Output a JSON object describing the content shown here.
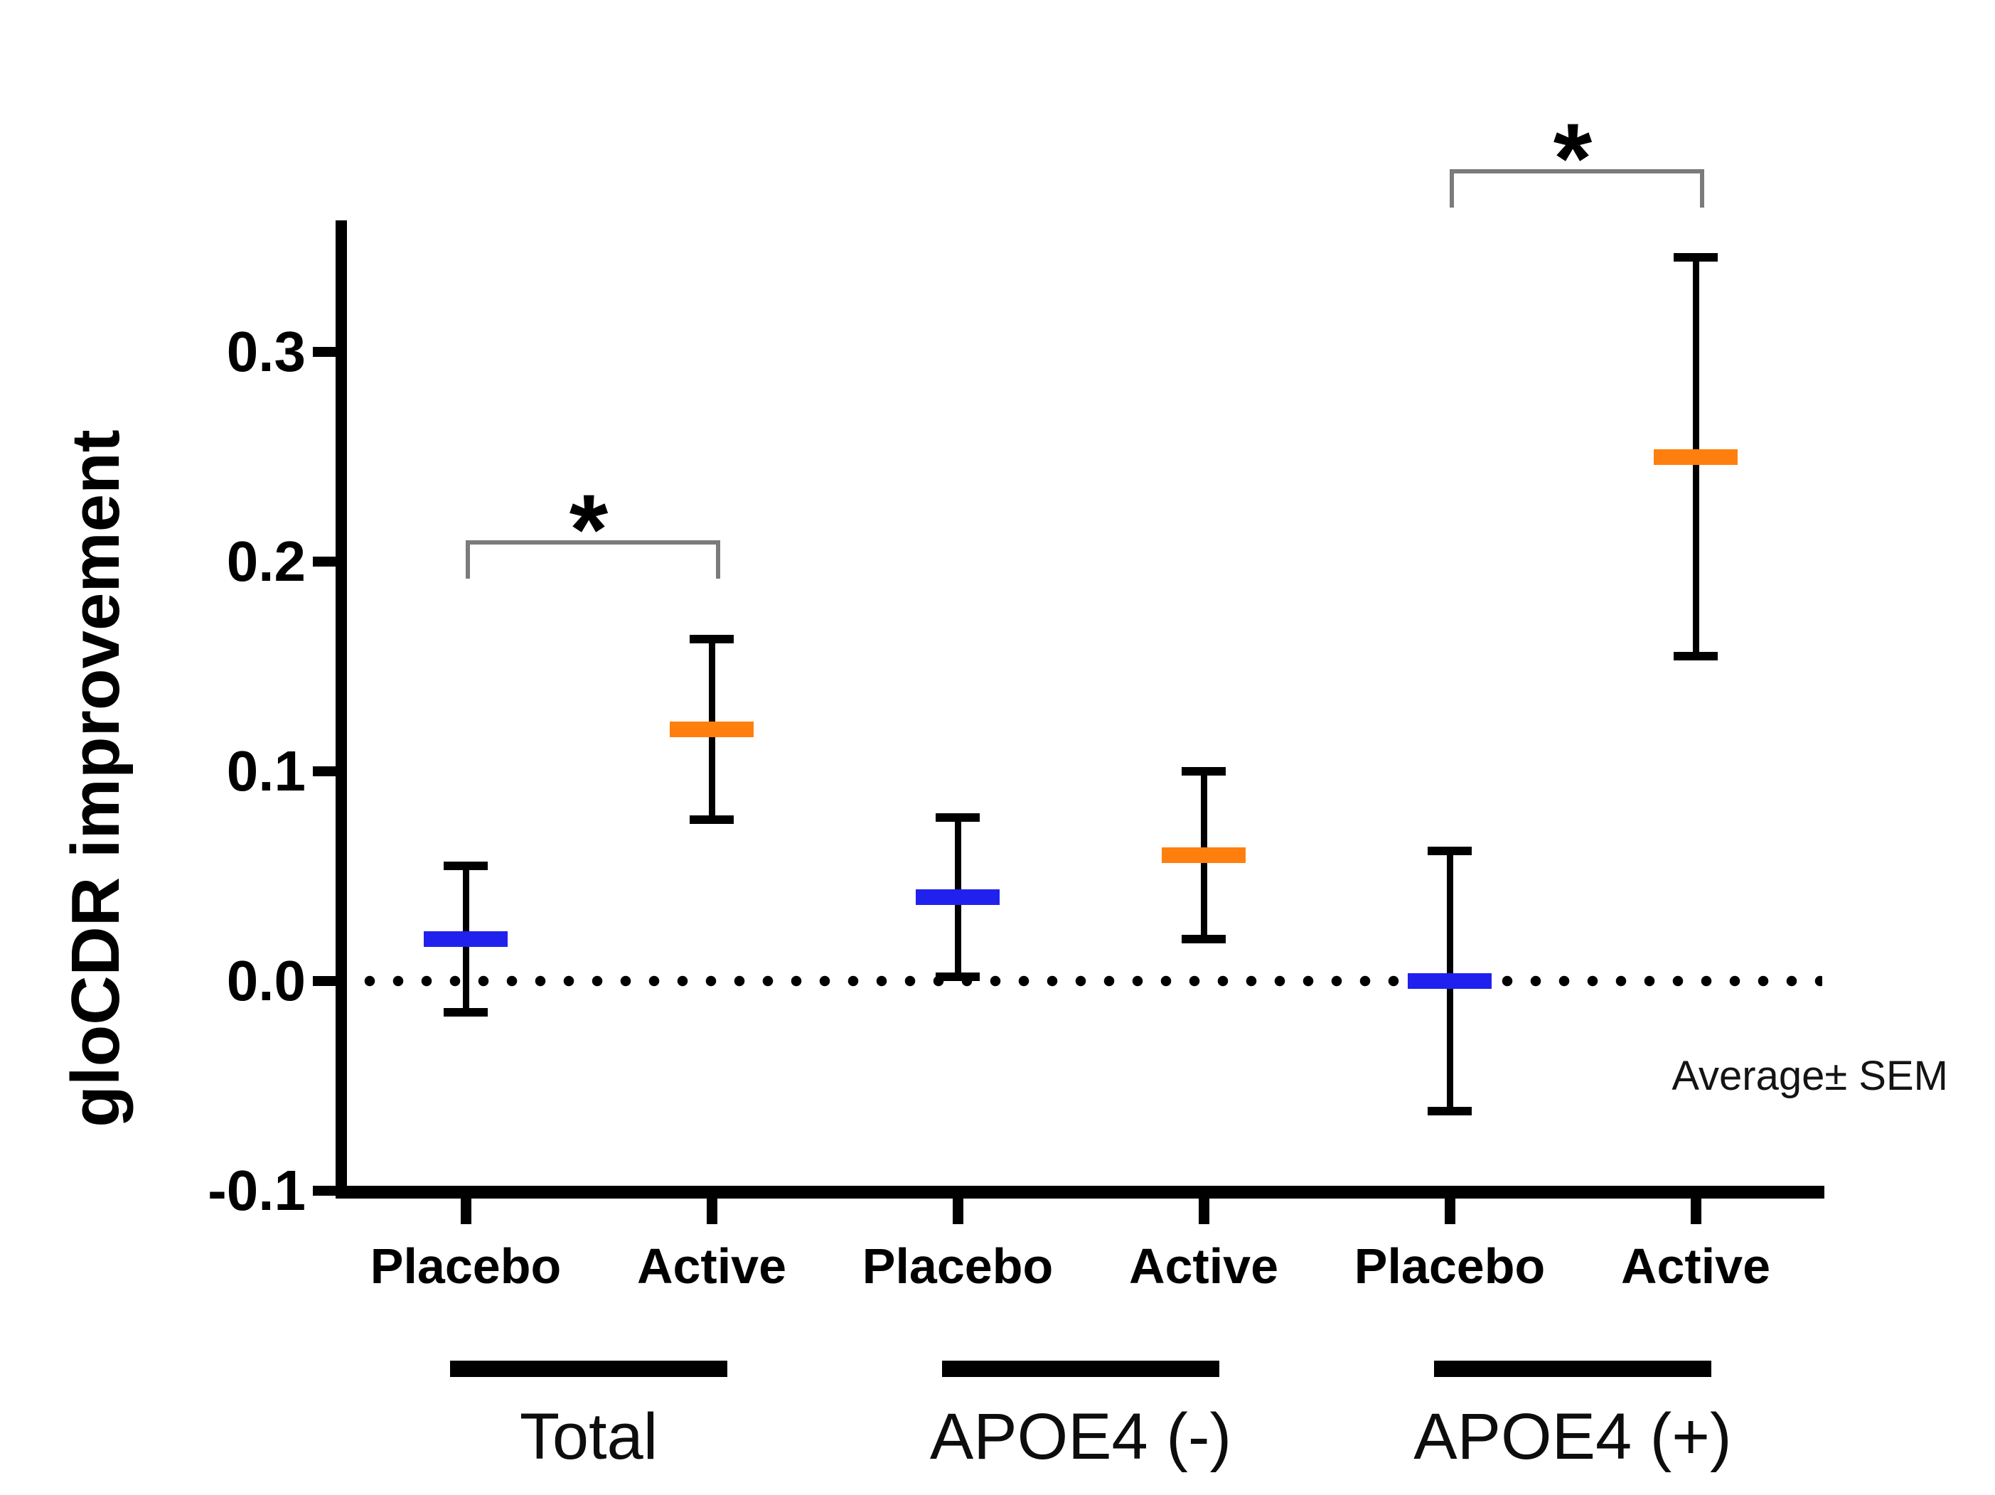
{
  "chart_data": {
    "type": "errorbar",
    "title": "",
    "ylabel": "gloCDR improvement",
    "note": "Average± SEM",
    "significance_marker": "*",
    "ylim": [
      -0.113,
      0.363
    ],
    "ytick_values": [
      0.3,
      0.2,
      0.1,
      0.0,
      -0.1
    ],
    "ytick_labels": [
      "0.3",
      "0.2",
      "0.1",
      "0.0",
      "-0.1"
    ],
    "grid": "off",
    "legend": "none",
    "zero_reference_line": {
      "value": 0.0,
      "style": "dotted"
    },
    "colors": {
      "placebo": "#2121ee",
      "active": "#ff7f0e",
      "axis": "#000000",
      "bracket": "#7b7b7b"
    },
    "condition_labels": [
      "Placebo",
      "Active"
    ],
    "groups": [
      {
        "label": "Total",
        "points": [
          {
            "condition": "Placebo",
            "mean": 0.02,
            "sem": 0.035
          },
          {
            "condition": "Active",
            "mean": 0.12,
            "sem": 0.043
          }
        ]
      },
      {
        "label": "APOE4 (-)",
        "points": [
          {
            "condition": "Placebo",
            "mean": 0.04,
            "sem": 0.038
          },
          {
            "condition": "Active",
            "mean": 0.06,
            "sem": 0.04
          }
        ]
      },
      {
        "label": "APOE4 (+)",
        "points": [
          {
            "condition": "Placebo",
            "mean": 0.0,
            "sem": 0.062
          },
          {
            "condition": "Active",
            "mean": 0.25,
            "sem": 0.095
          }
        ]
      }
    ],
    "brackets": [
      {
        "group": "Total",
        "between": [
          "Placebo",
          "Active"
        ],
        "y_value": 0.209,
        "star_y_value": 0.226
      },
      {
        "group": "APOE4 (+)",
        "between": [
          "Placebo",
          "Active"
        ],
        "y_value": 0.386,
        "star_y_value": 0.403
      }
    ]
  }
}
